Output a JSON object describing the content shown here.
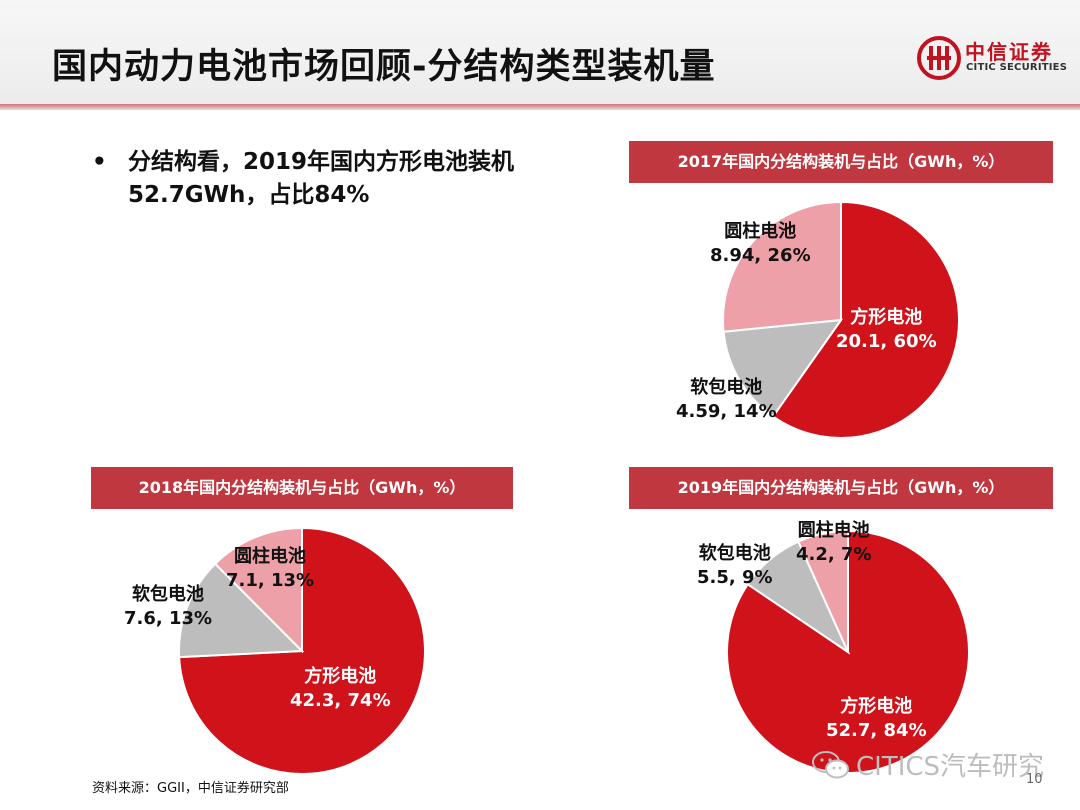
{
  "header": {
    "title": "国内动力电池市场回顾-分结构类型装机量"
  },
  "logo": {
    "name_cn": "中信证券",
    "name_en": "CITIC SECURITIES",
    "brand_color": "#c1121f"
  },
  "bullet": {
    "text": "分结构看，2019年国内方形电池装机52.7GWh，占比84%"
  },
  "colors": {
    "header_bg": "#c0373f",
    "prismatic": "#d0121b",
    "pouch": "#bdbdbd",
    "cylindrical": "#eda0a8"
  },
  "chart_data": [
    {
      "type": "pie",
      "title": "2017年国内分结构装机与占比（GWh，%）",
      "slices": [
        {
          "name": "方形电池",
          "value": 20.1,
          "percent": 60,
          "value_label": "20.1, 60%",
          "color": "#d0121b"
        },
        {
          "name": "软包电池",
          "value": 4.59,
          "percent": 14,
          "value_label": "4.59, 14%",
          "color": "#bdbdbd"
        },
        {
          "name": "圆柱电池",
          "value": 8.94,
          "percent": 26,
          "value_label": "8.94, 26%",
          "color": "#eda0a8"
        }
      ]
    },
    {
      "type": "pie",
      "title": "2018年国内分结构装机与占比（GWh，%）",
      "slices": [
        {
          "name": "方形电池",
          "value": 42.3,
          "percent": 74,
          "value_label": "42.3, 74%",
          "color": "#d0121b"
        },
        {
          "name": "软包电池",
          "value": 7.6,
          "percent": 13,
          "value_label": "7.6, 13%",
          "color": "#bdbdbd"
        },
        {
          "name": "圆柱电池",
          "value": 7.1,
          "percent": 13,
          "value_label": "7.1, 13%",
          "color": "#eda0a8"
        }
      ]
    },
    {
      "type": "pie",
      "title": "2019年国内分结构装机与占比（GWh，%）",
      "slices": [
        {
          "name": "方形电池",
          "value": 52.7,
          "percent": 84,
          "value_label": "52.7, 84%",
          "color": "#d0121b"
        },
        {
          "name": "软包电池",
          "value": 5.5,
          "percent": 9,
          "value_label": "5.5, 9%",
          "color": "#bdbdbd"
        },
        {
          "name": "圆柱电池",
          "value": 4.2,
          "percent": 7,
          "value_label": "4.2, 7%",
          "color": "#eda0a8"
        }
      ]
    }
  ],
  "footer": {
    "source": "资料来源：GGII，中信证券研究部",
    "watermark": "CITICS汽车研究",
    "page_number": "10"
  }
}
